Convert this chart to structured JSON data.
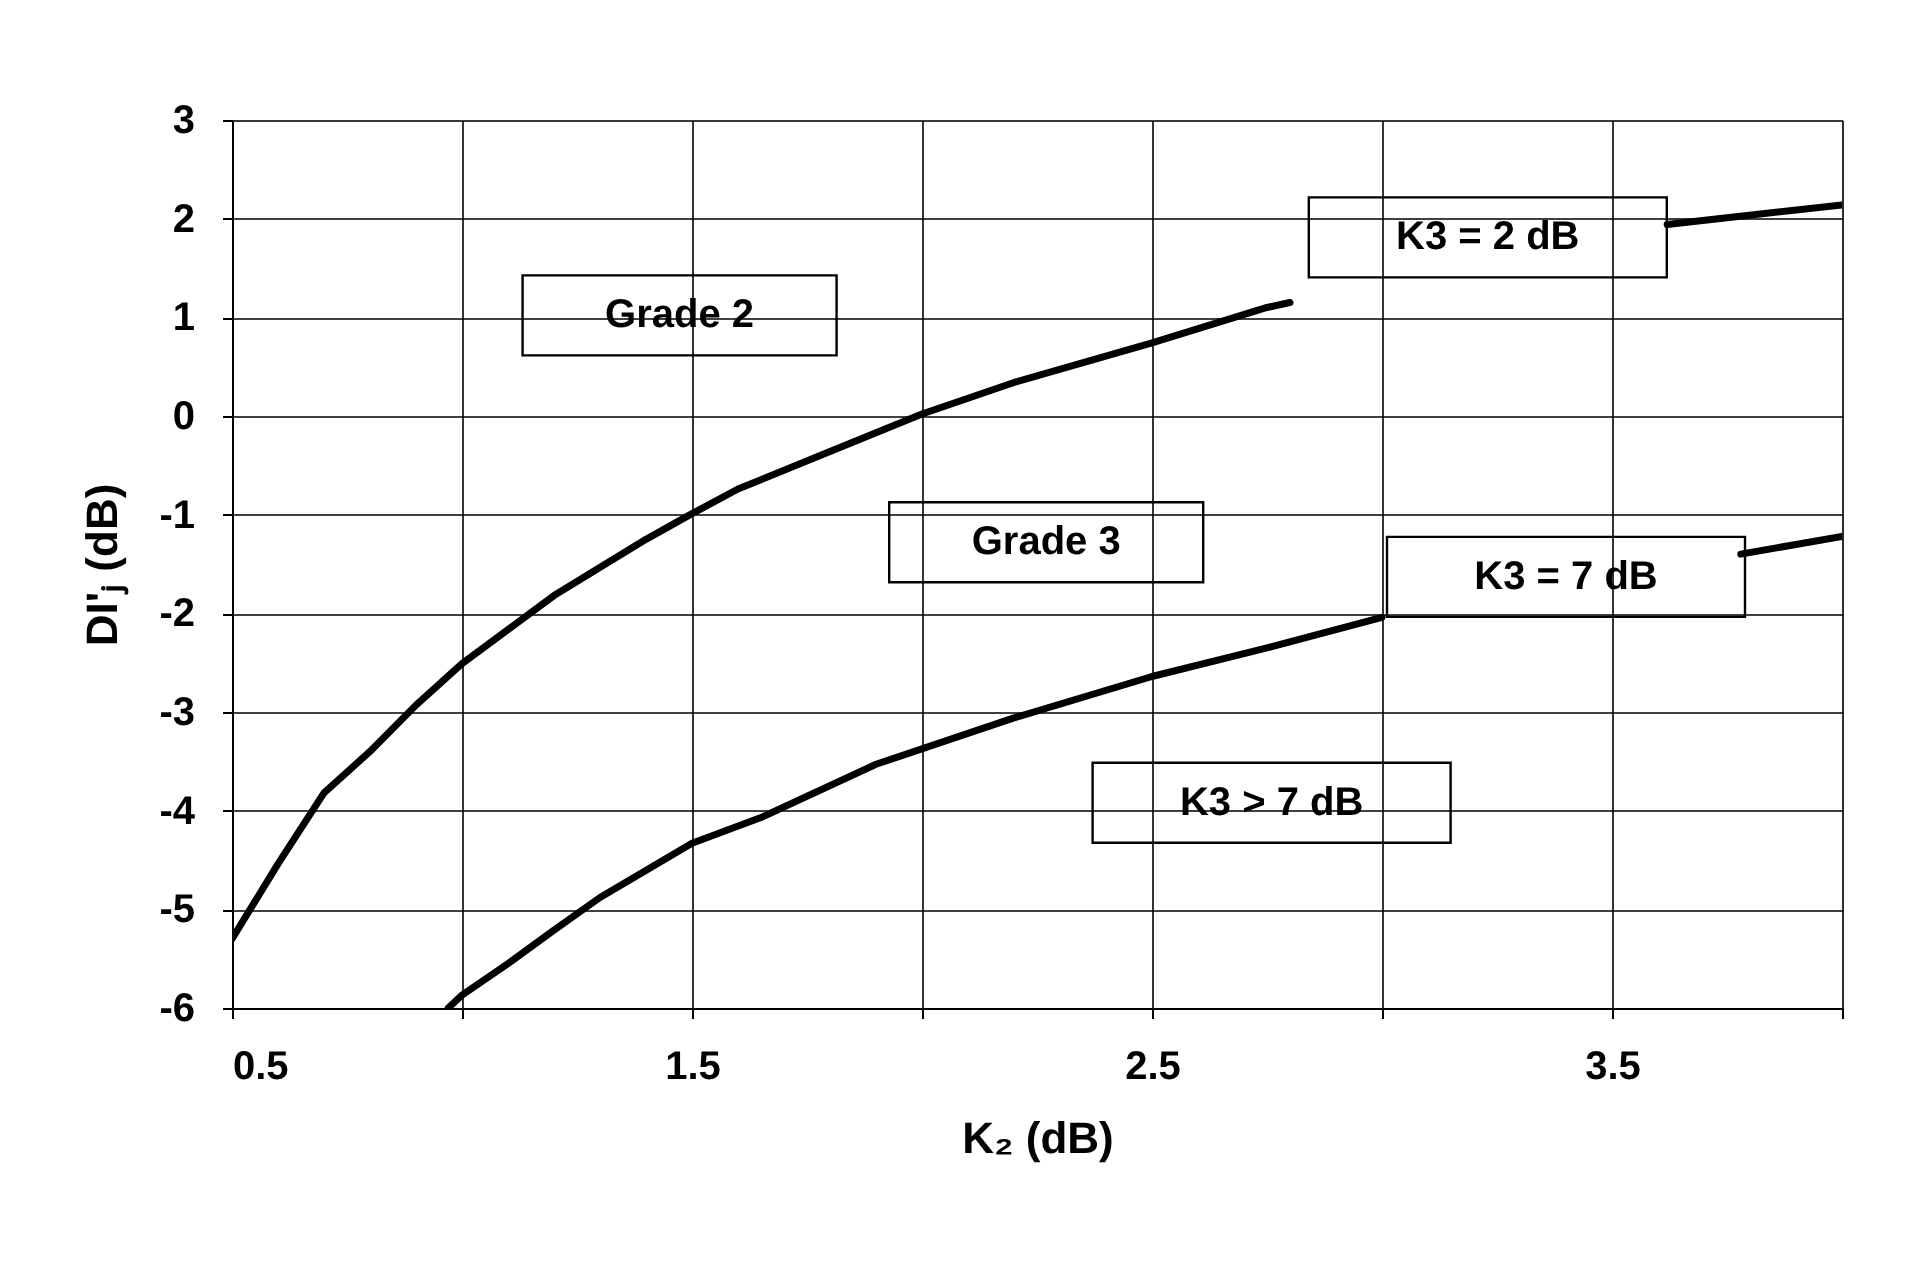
{
  "chart_data": {
    "type": "line",
    "xlabel": "K₂ (dB)",
    "ylabel": "DI'ⱼ (dB)",
    "xlim": [
      0.5,
      4.0
    ],
    "ylim": [
      -6,
      3
    ],
    "xticks": [
      0.5,
      {
        "value": 1.0,
        "label": null
      },
      1.5,
      {
        "value": 2.0,
        "label": null
      },
      2.5,
      {
        "value": 3.0,
        "label": null
      },
      3.5,
      {
        "value": 4.0,
        "label": null
      }
    ],
    "yticks": [
      -6,
      -5,
      -4,
      -3,
      -2,
      -1,
      0,
      1,
      2,
      3
    ],
    "grid": true,
    "marker": "none",
    "line_style": "solid",
    "series": [
      {
        "color": "#000000",
        "x": [
          0.5,
          0.6,
          0.7,
          0.8,
          0.9,
          1.0,
          1.2,
          1.4,
          1.5,
          1.6,
          1.8,
          2.0,
          2.2,
          2.5,
          2.75,
          2.8,
          3.0,
          3.25,
          3.5,
          3.62,
          3.75,
          4.0
        ],
        "values": [
          -5.3,
          -4.54,
          -3.82,
          -3.4,
          -2.93,
          -2.51,
          -1.82,
          -1.25,
          -0.99,
          -0.74,
          -0.36,
          0.02,
          0.34,
          0.74,
          1.1,
          1.15,
          null,
          null,
          null,
          1.94,
          2.01,
          2.14
        ]
      },
      {
        "color": "#000000",
        "x": [
          0.97,
          1.0,
          1.1,
          1.2,
          1.3,
          1.5,
          1.65,
          1.9,
          2.2,
          2.5,
          2.75,
          3.0,
          3.5,
          3.78,
          4.0
        ],
        "values": [
          -6.0,
          -5.87,
          -5.55,
          -5.21,
          -4.88,
          -4.33,
          -4.07,
          -3.53,
          -3.06,
          -2.64,
          -2.35,
          -2.04,
          null,
          -1.4,
          -1.22
        ]
      }
    ],
    "annotations": [
      "Grade 2",
      "Grade 3",
      "K3 = 2 dB",
      "K3 = 7 dB",
      "K3 > 7 dB"
    ]
  }
}
